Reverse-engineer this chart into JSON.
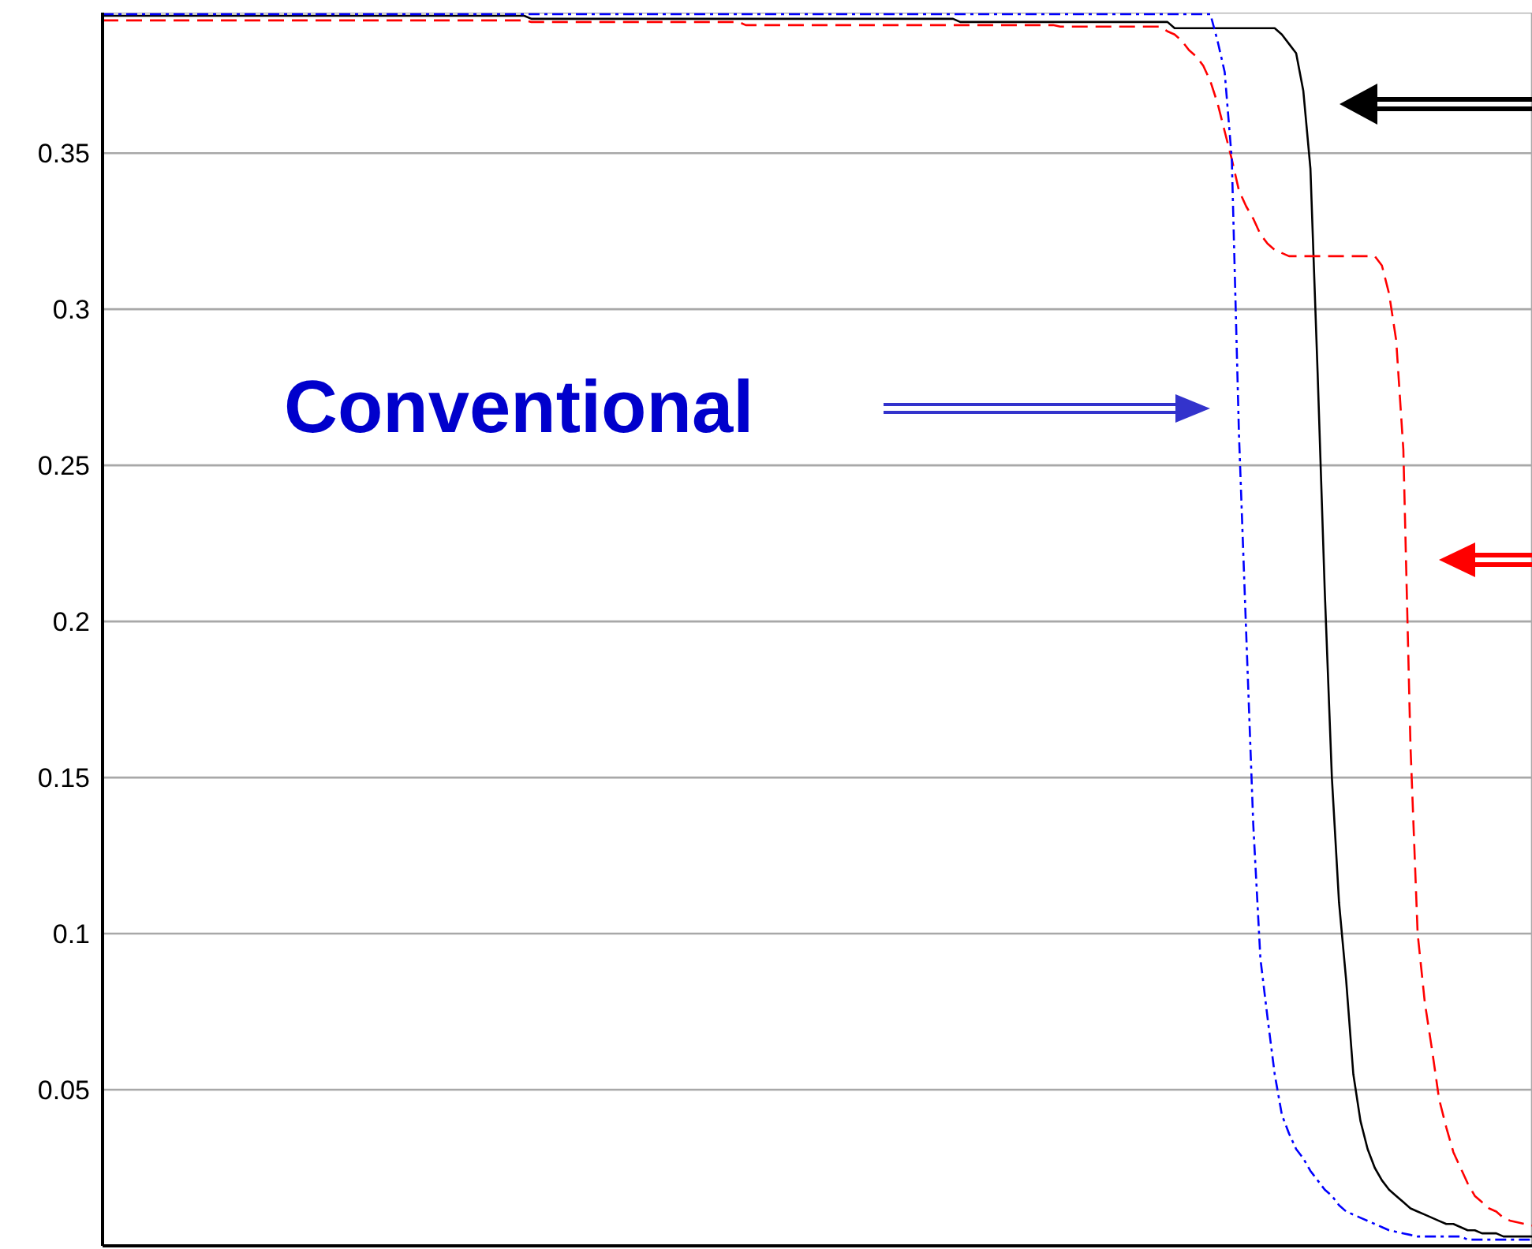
{
  "chart_data": {
    "type": "line",
    "categories": [
      null,
      null,
      null,
      null,
      null,
      null,
      null,
      null,
      null,
      null,
      null,
      null,
      null,
      null,
      null,
      null,
      null,
      null,
      null,
      null,
      null,
      null,
      null,
      null,
      null,
      null,
      null,
      null,
      null,
      null,
      null,
      null,
      null,
      null,
      null,
      null,
      null,
      null,
      null,
      null,
      null,
      null,
      null,
      null,
      null,
      null,
      null,
      null,
      null,
      null,
      null,
      null,
      null,
      null,
      null,
      null,
      null,
      null,
      null,
      null,
      null,
      null,
      null,
      null,
      null,
      null,
      null,
      null,
      null,
      null,
      null,
      null,
      null,
      null,
      null,
      null,
      null,
      null,
      null,
      null,
      null,
      null,
      null,
      null,
      null,
      null,
      null,
      null,
      null,
      null,
      null,
      null,
      null,
      null,
      null,
      null,
      null,
      null,
      null,
      null,
      null,
      null,
      null,
      null,
      null,
      null,
      null,
      null,
      null,
      null,
      null,
      null,
      null,
      null,
      null,
      null,
      null,
      null,
      null,
      null,
      null,
      null,
      null,
      null,
      null,
      null,
      null,
      null,
      null,
      null,
      null,
      null,
      null,
      null,
      null,
      null,
      null,
      null,
      null,
      null,
      null,
      null,
      null,
      null,
      null,
      null,
      null,
      null,
      null,
      null,
      null,
      null,
      null,
      null,
      null,
      null,
      null,
      null,
      null,
      null,
      null,
      null,
      null,
      null,
      null,
      null,
      null,
      null,
      null,
      null,
      null,
      null,
      null,
      null,
      null,
      null,
      null,
      null,
      null,
      null,
      null,
      null,
      null,
      null,
      null,
      null,
      null,
      null,
      null,
      null,
      null,
      null,
      null,
      null,
      null,
      null,
      null,
      null,
      null,
      null,
      null
    ],
    "series": [
      {
        "color": "#000000",
        "line_style": "solid",
        "values": [
          0.394,
          0.394,
          0.394,
          0.394,
          0.394,
          0.394,
          0.394,
          0.394,
          0.394,
          0.394,
          0.394,
          0.394,
          0.394,
          0.394,
          0.394,
          0.394,
          0.394,
          0.394,
          0.394,
          0.394,
          0.394,
          0.394,
          0.394,
          0.394,
          0.394,
          0.394,
          0.394,
          0.394,
          0.394,
          0.394,
          0.394,
          0.394,
          0.394,
          0.394,
          0.394,
          0.394,
          0.394,
          0.394,
          0.394,
          0.394,
          0.394,
          0.394,
          0.394,
          0.394,
          0.394,
          0.394,
          0.394,
          0.394,
          0.394,
          0.394,
          0.394,
          0.394,
          0.394,
          0.394,
          0.394,
          0.394,
          0.394,
          0.394,
          0.394,
          0.394,
          0.393,
          0.393,
          0.393,
          0.393,
          0.393,
          0.393,
          0.393,
          0.393,
          0.393,
          0.393,
          0.393,
          0.393,
          0.393,
          0.393,
          0.393,
          0.393,
          0.393,
          0.393,
          0.393,
          0.393,
          0.393,
          0.393,
          0.393,
          0.393,
          0.393,
          0.393,
          0.393,
          0.393,
          0.393,
          0.393,
          0.393,
          0.393,
          0.393,
          0.393,
          0.393,
          0.393,
          0.393,
          0.393,
          0.393,
          0.393,
          0.393,
          0.393,
          0.393,
          0.393,
          0.393,
          0.393,
          0.393,
          0.393,
          0.393,
          0.393,
          0.393,
          0.393,
          0.393,
          0.393,
          0.393,
          0.393,
          0.393,
          0.393,
          0.393,
          0.393,
          0.392,
          0.392,
          0.392,
          0.392,
          0.392,
          0.392,
          0.392,
          0.392,
          0.392,
          0.392,
          0.392,
          0.392,
          0.392,
          0.392,
          0.392,
          0.392,
          0.392,
          0.392,
          0.392,
          0.392,
          0.392,
          0.392,
          0.392,
          0.392,
          0.392,
          0.392,
          0.392,
          0.392,
          0.392,
          0.392,
          0.39,
          0.39,
          0.39,
          0.39,
          0.39,
          0.39,
          0.39,
          0.39,
          0.39,
          0.39,
          0.39,
          0.39,
          0.39,
          0.39,
          0.39,
          0.388,
          0.385,
          0.382,
          0.37,
          0.345,
          0.28,
          0.21,
          0.15,
          0.11,
          0.085,
          0.055,
          0.04,
          0.031,
          0.025,
          0.021,
          0.018,
          0.016,
          0.014,
          0.012,
          0.011,
          0.01,
          0.009,
          0.008,
          0.007,
          0.007,
          0.006,
          0.005,
          0.005,
          0.004,
          0.004,
          0.004,
          0.003,
          0.003,
          0.003,
          0.003,
          0.003
        ]
      },
      {
        "color": "#ff0000",
        "line_style": "dashed",
        "values": [
          0.3925,
          0.3925,
          0.3925,
          0.3925,
          0.3925,
          0.3925,
          0.3925,
          0.3925,
          0.3925,
          0.3925,
          0.3925,
          0.3925,
          0.3925,
          0.3925,
          0.3925,
          0.3925,
          0.3925,
          0.3925,
          0.3925,
          0.3925,
          0.3925,
          0.3925,
          0.3925,
          0.3925,
          0.3925,
          0.3925,
          0.3925,
          0.3925,
          0.3925,
          0.3925,
          0.3925,
          0.3925,
          0.3925,
          0.3925,
          0.3925,
          0.3925,
          0.3925,
          0.3925,
          0.3925,
          0.3925,
          0.3925,
          0.3925,
          0.3925,
          0.3925,
          0.3925,
          0.3925,
          0.3925,
          0.3925,
          0.3925,
          0.3925,
          0.3925,
          0.3925,
          0.3925,
          0.3925,
          0.3925,
          0.3925,
          0.3925,
          0.3925,
          0.3925,
          0.3925,
          0.392,
          0.392,
          0.392,
          0.392,
          0.392,
          0.392,
          0.392,
          0.392,
          0.392,
          0.392,
          0.392,
          0.392,
          0.392,
          0.392,
          0.392,
          0.392,
          0.392,
          0.392,
          0.392,
          0.392,
          0.392,
          0.392,
          0.392,
          0.392,
          0.392,
          0.392,
          0.392,
          0.392,
          0.392,
          0.392,
          0.391,
          0.391,
          0.391,
          0.391,
          0.391,
          0.391,
          0.391,
          0.391,
          0.391,
          0.391,
          0.391,
          0.391,
          0.391,
          0.391,
          0.391,
          0.391,
          0.391,
          0.391,
          0.391,
          0.391,
          0.391,
          0.391,
          0.391,
          0.391,
          0.391,
          0.391,
          0.391,
          0.391,
          0.391,
          0.391,
          0.391,
          0.391,
          0.391,
          0.391,
          0.391,
          0.391,
          0.391,
          0.391,
          0.391,
          0.391,
          0.391,
          0.391,
          0.391,
          0.391,
          0.3905,
          0.3905,
          0.3905,
          0.3905,
          0.3905,
          0.3905,
          0.3905,
          0.3905,
          0.3905,
          0.3905,
          0.3905,
          0.3905,
          0.3905,
          0.3905,
          0.3905,
          0.389,
          0.388,
          0.386,
          0.383,
          0.381,
          0.378,
          0.373,
          0.366,
          0.357,
          0.348,
          0.338,
          0.333,
          0.329,
          0.324,
          0.321,
          0.319,
          0.318,
          0.317,
          0.317,
          0.317,
          0.317,
          0.317,
          0.317,
          0.317,
          0.317,
          0.317,
          0.317,
          0.317,
          0.317,
          0.317,
          0.314,
          0.305,
          0.29,
          0.255,
          0.16,
          0.1,
          0.078,
          0.063,
          0.047,
          0.038,
          0.03,
          0.025,
          0.02,
          0.016,
          0.014,
          0.012,
          0.011,
          0.009,
          0.008,
          0.0075,
          0.007,
          0.0065
        ]
      },
      {
        "color": "#0000ff",
        "line_style": "dotted",
        "values": [
          0.3945,
          0.3945,
          0.3945,
          0.3945,
          0.3945,
          0.3945,
          0.3945,
          0.3945,
          0.3945,
          0.3945,
          0.3945,
          0.3945,
          0.3945,
          0.3945,
          0.3945,
          0.3945,
          0.3945,
          0.3945,
          0.3945,
          0.3945,
          0.3945,
          0.3945,
          0.3945,
          0.3945,
          0.3945,
          0.3945,
          0.3945,
          0.3945,
          0.3945,
          0.3945,
          0.3945,
          0.3945,
          0.3945,
          0.3945,
          0.3945,
          0.3945,
          0.3945,
          0.3945,
          0.3945,
          0.3945,
          0.3945,
          0.3945,
          0.3945,
          0.3945,
          0.3945,
          0.3945,
          0.3945,
          0.3945,
          0.3945,
          0.3945,
          0.3945,
          0.3945,
          0.3945,
          0.3945,
          0.3945,
          0.3945,
          0.3945,
          0.3945,
          0.3945,
          0.3945,
          0.3945,
          0.3945,
          0.3945,
          0.3945,
          0.3945,
          0.3945,
          0.3945,
          0.3945,
          0.3945,
          0.3945,
          0.3945,
          0.3945,
          0.3945,
          0.3945,
          0.3945,
          0.3945,
          0.3945,
          0.3945,
          0.3945,
          0.3945,
          0.3945,
          0.3945,
          0.3945,
          0.3945,
          0.3945,
          0.3945,
          0.3945,
          0.3945,
          0.3945,
          0.3945,
          0.3945,
          0.3945,
          0.3945,
          0.3945,
          0.3945,
          0.3945,
          0.3945,
          0.3945,
          0.3945,
          0.3945,
          0.3945,
          0.3945,
          0.3945,
          0.3945,
          0.3945,
          0.3945,
          0.3945,
          0.3945,
          0.3945,
          0.3945,
          0.3945,
          0.3945,
          0.3945,
          0.3945,
          0.3945,
          0.3945,
          0.3945,
          0.3945,
          0.3945,
          0.3945,
          0.3945,
          0.3945,
          0.3945,
          0.3945,
          0.3945,
          0.3945,
          0.3945,
          0.3945,
          0.3945,
          0.3945,
          0.3945,
          0.3945,
          0.3945,
          0.3945,
          0.3945,
          0.3945,
          0.3945,
          0.3945,
          0.3945,
          0.3945,
          0.3945,
          0.3945,
          0.3945,
          0.3945,
          0.3945,
          0.3945,
          0.3945,
          0.3945,
          0.3945,
          0.3945,
          0.3945,
          0.3945,
          0.3945,
          0.3945,
          0.3945,
          0.3945,
          0.386,
          0.376,
          0.348,
          0.26,
          0.197,
          0.135,
          0.092,
          0.073,
          0.055,
          0.042,
          0.036,
          0.031,
          0.028,
          0.024,
          0.021,
          0.018,
          0.016,
          0.013,
          0.011,
          0.01,
          0.009,
          0.008,
          0.007,
          0.006,
          0.005,
          0.0045,
          0.004,
          0.0035,
          0.003,
          0.003,
          0.003,
          0.003,
          0.003,
          0.003,
          0.003,
          0.002,
          0.002,
          0.002,
          0.002,
          0.002,
          0.002,
          0.002,
          0.002,
          0.002,
          0.002
        ]
      }
    ],
    "ylim": [
      0,
      0.395
    ],
    "yticks": [
      0.05,
      0.1,
      0.15,
      0.2,
      0.25,
      0.3,
      0.35
    ],
    "grid": true,
    "tick_labels": "y",
    "annotations": [
      "Conventional"
    ]
  }
}
